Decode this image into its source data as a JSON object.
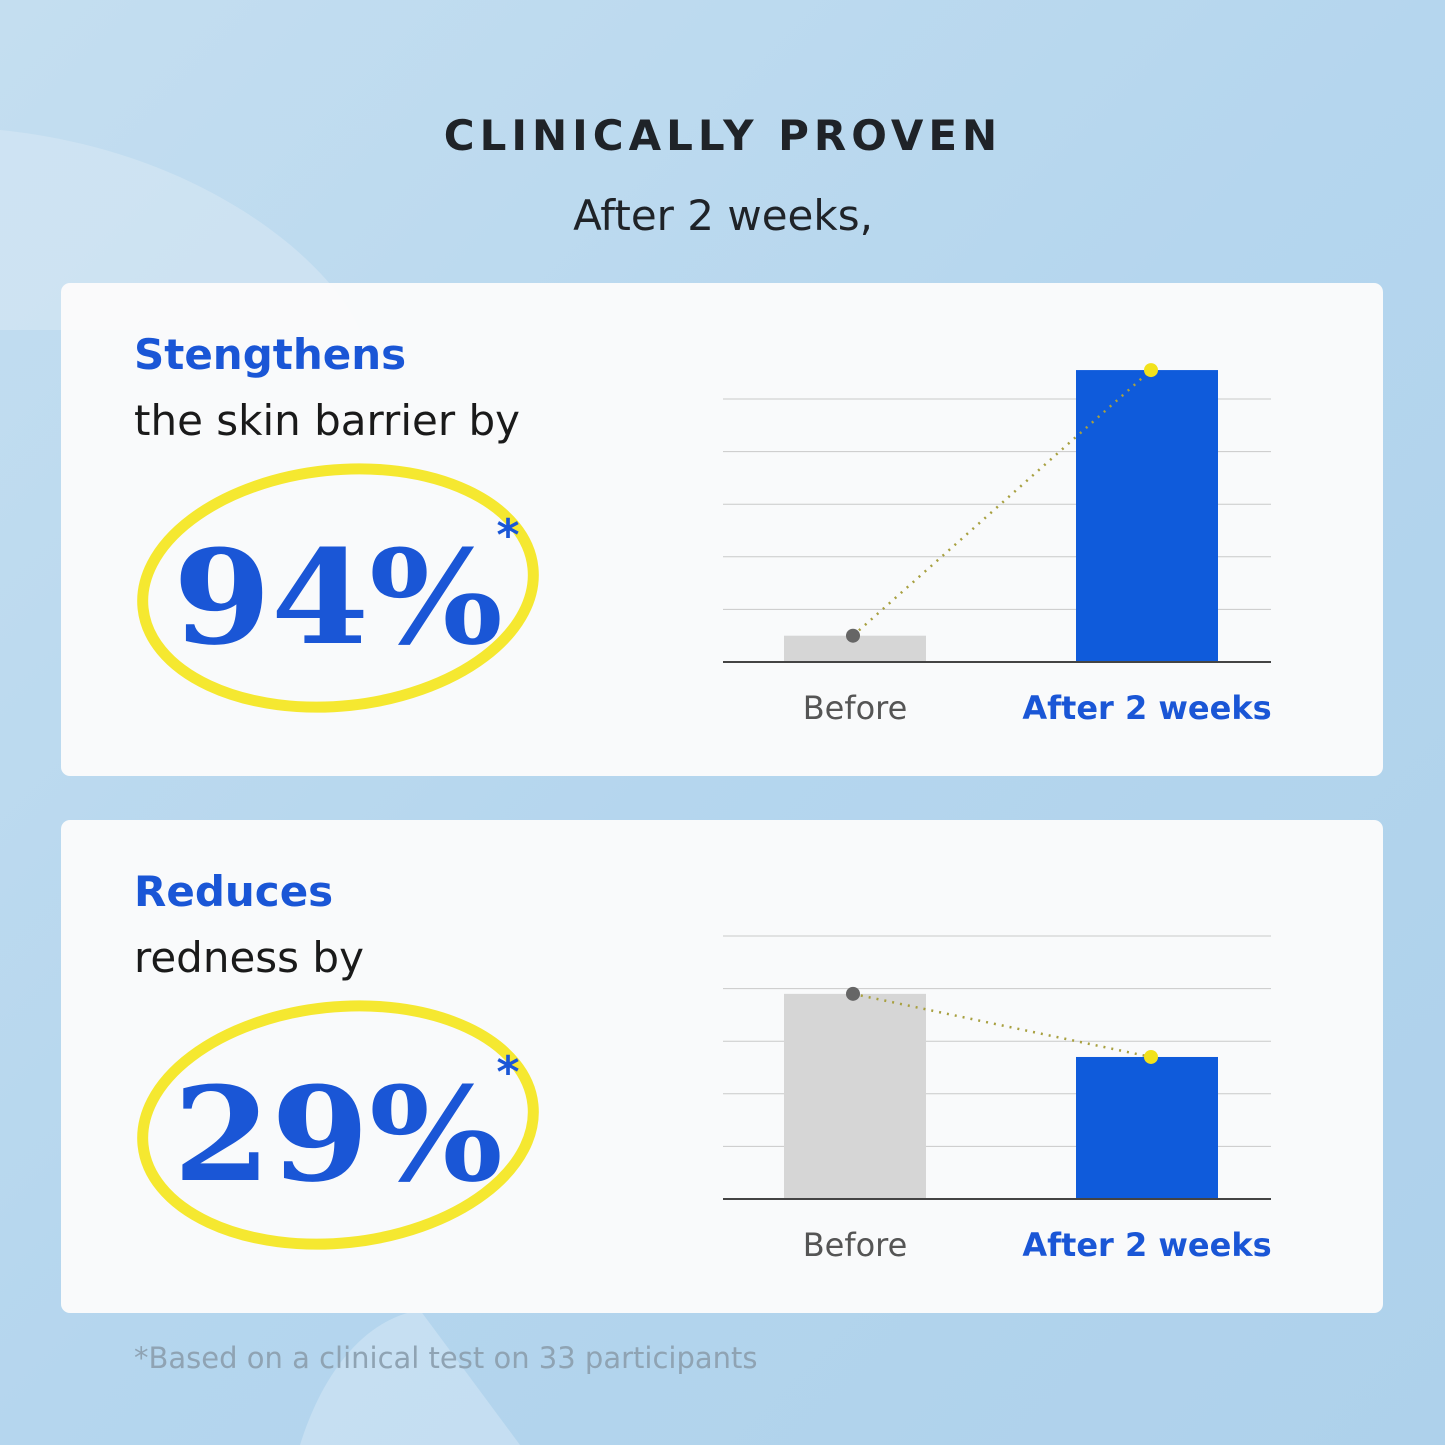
{
  "header": {
    "title": "CLINICALLY PROVEN",
    "subtitle": "After 2 weeks,"
  },
  "panels": [
    {
      "heading": "Stengthens",
      "text": "the skin barrier by",
      "figure": "94%",
      "asterisk": "*",
      "chart_data": {
        "type": "bar",
        "categories": [
          "Before",
          "After 2 weeks"
        ],
        "values": [
          0.5,
          5.55
        ],
        "colors": [
          "#d6d6d6",
          "#0f5bdb"
        ],
        "label_colors": [
          "#555555",
          "#1a56d6"
        ],
        "marker_colors": [
          "#666666",
          "#f2e21c"
        ],
        "ylim": [
          0,
          6
        ],
        "yticks": [
          1,
          2,
          3,
          4,
          5
        ],
        "grid": true
      }
    },
    {
      "heading": "Reduces",
      "text": "redness by",
      "figure": "29%",
      "asterisk": "*",
      "chart_data": {
        "type": "bar",
        "categories": [
          "Before",
          "After 2 weeks"
        ],
        "values": [
          3.9,
          2.7
        ],
        "colors": [
          "#d6d6d6",
          "#0f5bdb"
        ],
        "label_colors": [
          "#555555",
          "#1a56d6"
        ],
        "marker_colors": [
          "#666666",
          "#f2e21c"
        ],
        "ylim": [
          0,
          6
        ],
        "yticks": [
          1,
          2,
          3,
          4,
          5
        ],
        "grid": true
      }
    }
  ],
  "footnote": "*Based on a clinical test on 33 participants"
}
